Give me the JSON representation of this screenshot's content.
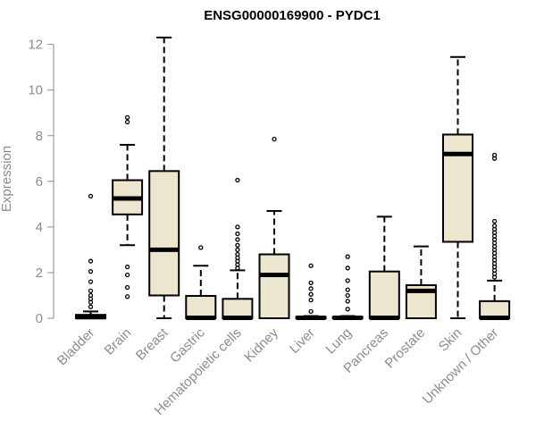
{
  "chart_data": {
    "type": "boxplot",
    "title": "ENSG00000169900 - PYDC1",
    "ylabel": "Expression",
    "xlabel": "",
    "ylim": [
      0,
      12.3
    ],
    "yticks": [
      0,
      2,
      4,
      6,
      8,
      10,
      12
    ],
    "box_fill": "#ede6cf",
    "categories": [
      "Bladder",
      "Brain",
      "Breast",
      "Gastric",
      "Hematopoietic cells",
      "Kidney",
      "Liver",
      "Lung",
      "Pancreas",
      "Prostate",
      "Skin",
      "Unknown / Other"
    ],
    "series": [
      {
        "category": "Bladder",
        "whisker_low": 0,
        "q1": 0,
        "median": 0.05,
        "q3": 0.15,
        "whisker_high": 0.3,
        "outliers": [
          0.5,
          0.7,
          0.85,
          1.0,
          1.2,
          1.6,
          2.05,
          2.5,
          5.35
        ]
      },
      {
        "category": "Brain",
        "whisker_low": 3.2,
        "q1": 4.55,
        "median": 5.25,
        "q3": 6.05,
        "whisker_high": 7.6,
        "outliers": [
          0.95,
          1.35,
          1.9,
          2.25,
          8.6,
          8.8
        ]
      },
      {
        "category": "Breast",
        "whisker_low": 0,
        "q1": 1.0,
        "median": 3.0,
        "q3": 6.45,
        "whisker_high": 12.3,
        "outliers": []
      },
      {
        "category": "Gastric",
        "whisker_low": 0,
        "q1": 0,
        "median": 0.02,
        "q3": 0.98,
        "whisker_high": 2.3,
        "outliers": [
          3.1
        ]
      },
      {
        "category": "Hematopoietic cells",
        "whisker_low": 0,
        "q1": 0,
        "median": 0.02,
        "q3": 0.85,
        "whisker_high": 2.1,
        "outliers": [
          2.2,
          2.35,
          2.5,
          2.65,
          2.8,
          3.0,
          3.2,
          3.45,
          3.7,
          4.0,
          6.05
        ]
      },
      {
        "category": "Kidney",
        "whisker_low": 0,
        "q1": 0,
        "median": 1.9,
        "q3": 2.8,
        "whisker_high": 4.7,
        "outliers": [
          7.85
        ]
      },
      {
        "category": "Liver",
        "whisker_low": 0,
        "q1": 0,
        "median": 0.02,
        "q3": 0.06,
        "whisker_high": 0.1,
        "outliers": [
          0.3,
          0.8,
          1.05,
          1.3,
          1.55,
          2.3
        ]
      },
      {
        "category": "Lung",
        "whisker_low": 0,
        "q1": 0,
        "median": 0.02,
        "q3": 0.06,
        "whisker_high": 0.1,
        "outliers": [
          0.4,
          0.75,
          1.0,
          1.25,
          1.65,
          2.2,
          2.7
        ]
      },
      {
        "category": "Pancreas",
        "whisker_low": 0,
        "q1": 0,
        "median": 0.02,
        "q3": 2.05,
        "whisker_high": 4.45,
        "outliers": []
      },
      {
        "category": "Prostate",
        "whisker_low": 0,
        "q1": 0,
        "median": 1.2,
        "q3": 1.45,
        "whisker_high": 3.15,
        "outliers": []
      },
      {
        "category": "Skin",
        "whisker_low": 0,
        "q1": 3.35,
        "median": 7.2,
        "q3": 8.05,
        "whisker_high": 11.45,
        "outliers": []
      },
      {
        "category": "Unknown / Other",
        "whisker_low": 0,
        "q1": 0,
        "median": 0.02,
        "q3": 0.75,
        "whisker_high": 1.65,
        "outliers": [
          1.8,
          1.95,
          2.1,
          2.25,
          2.4,
          2.55,
          2.7,
          2.85,
          3.0,
          3.15,
          3.3,
          3.45,
          3.6,
          3.75,
          3.9,
          4.05,
          4.25,
          7.0,
          7.15
        ]
      }
    ]
  }
}
